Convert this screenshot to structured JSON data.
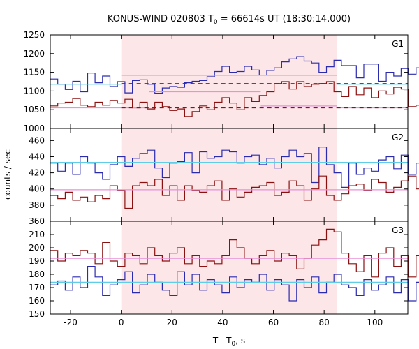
{
  "title": {
    "prefix": "KONUS-WIND 020803 T",
    "sub": "0",
    "suffix": " = 66614s UT (18:30:14.000)"
  },
  "xlabel": {
    "prefix": "T - T",
    "sub": "0",
    "suffix": ", s"
  },
  "ylabel": "counts / sec",
  "colors": {
    "blue": "#2b2bb0",
    "red": "#8b1010",
    "cyan": "#5ecde8",
    "pink": "#e890d8",
    "shade": "#fde6e8"
  },
  "chart_data": [
    {
      "type": "line",
      "panel": "G1",
      "shaded_interval": [
        0,
        85
      ],
      "xlim": [
        -28,
        113
      ],
      "ylim": [
        1000,
        1250
      ],
      "yticks": [
        1000,
        1050,
        1100,
        1150,
        1200,
        1250
      ],
      "xticks": [
        -20,
        0,
        20,
        40,
        60,
        80,
        100
      ],
      "x_start": -28,
      "bin_width": 2.944,
      "series": [
        {
          "color": "blue",
          "style": "step",
          "values": [
            1132,
            1118,
            1104,
            1126,
            1098,
            1148,
            1122,
            1140,
            1112,
            1125,
            1095,
            1128,
            1130,
            1118,
            1094,
            1108,
            1112,
            1110,
            1122,
            1126,
            1128,
            1138,
            1152,
            1166,
            1150,
            1152,
            1166,
            1156,
            1142,
            1155,
            1162,
            1178,
            1186,
            1192,
            1180,
            1175,
            1150,
            1165,
            1182,
            1168,
            1168,
            1135,
            1172,
            1172,
            1126,
            1150,
            1140,
            1160,
            1145,
            1162,
            1155,
            1168,
            1142,
            1122,
            1142,
            1110,
            1138,
            1120,
            1112,
            1108,
            1098,
            1118,
            1108,
            1110,
            1108,
            1080,
            1125,
            1110,
            1124,
            1118,
            1112,
            1092,
            1155,
            1142,
            1144,
            1145,
            1152,
            1160
          ]
        },
        {
          "color": "red",
          "style": "step",
          "values": [
            1060,
            1068,
            1070,
            1080,
            1062,
            1058,
            1070,
            1062,
            1075,
            1068,
            1078,
            1055,
            1070,
            1052,
            1070,
            1058,
            1048,
            1052,
            1032,
            1045,
            1060,
            1050,
            1070,
            1082,
            1068,
            1050,
            1082,
            1072,
            1088,
            1098,
            1120,
            1125,
            1105,
            1125,
            1112,
            1118,
            1120,
            1125,
            1098,
            1085,
            1112,
            1090,
            1108,
            1082,
            1100,
            1092,
            1110,
            1105,
            1058,
            1062,
            1070,
            1085,
            1075,
            1052,
            1062,
            1068,
            1050,
            1062,
            1072,
            1065,
            1070,
            1062,
            1068,
            1055,
            1060,
            1065,
            1045,
            1060,
            1048,
            1058,
            1055,
            1062,
            1055,
            1045,
            1050,
            1052,
            1050,
            1065
          ]
        },
        {
          "color": "cyan",
          "style": "segments",
          "segments": [
            [
              -28,
              0,
              1118
            ],
            [
              0,
              85,
              1142
            ],
            [
              85,
              113,
              1118
            ]
          ]
        },
        {
          "color": "pink",
          "style": "segments",
          "segments": [
            [
              -28,
              0,
              1055
            ],
            [
              0,
              11,
              1055
            ],
            [
              11,
              55,
              1098
            ],
            [
              55,
              85,
              1060
            ],
            [
              85,
              113,
              1055
            ]
          ]
        },
        {
          "color": "blue",
          "style": "dashed",
          "segments": [
            [
              0,
              113,
              1120
            ]
          ]
        },
        {
          "color": "red",
          "style": "dashed",
          "segments": [
            [
              0,
              113,
              1055
            ]
          ]
        }
      ]
    },
    {
      "type": "line",
      "panel": "G2",
      "shaded_interval": [
        0,
        85
      ],
      "xlim": [
        -28,
        113
      ],
      "ylim": [
        360,
        475
      ],
      "yticks": [
        360,
        380,
        400,
        420,
        440,
        460
      ],
      "xticks": [
        -20,
        0,
        20,
        40,
        60,
        80,
        100
      ],
      "x_start": -28,
      "bin_width": 2.944,
      "series": [
        {
          "color": "blue",
          "style": "step",
          "values": [
            432,
            422,
            432,
            418,
            440,
            432,
            420,
            412,
            430,
            440,
            428,
            438,
            444,
            448,
            426,
            414,
            432,
            434,
            445,
            420,
            446,
            438,
            440,
            448,
            446,
            432,
            440,
            442,
            430,
            438,
            426,
            440,
            448,
            440,
            444,
            408,
            452,
            430,
            420,
            402,
            432,
            418,
            426,
            422,
            436,
            440,
            425,
            442,
            418,
            432,
            418,
            426,
            436,
            432,
            412,
            430,
            428,
            406,
            422,
            420,
            430,
            410,
            444,
            426,
            430,
            438,
            408,
            428,
            450,
            424,
            432,
            412,
            442,
            432,
            432,
            440,
            434,
            444
          ]
        },
        {
          "color": "red",
          "style": "step",
          "values": [
            392,
            388,
            396,
            386,
            390,
            384,
            392,
            388,
            404,
            398,
            376,
            404,
            408,
            404,
            412,
            392,
            404,
            386,
            404,
            398,
            396,
            404,
            410,
            386,
            400,
            390,
            396,
            402,
            404,
            408,
            392,
            396,
            410,
            404,
            386,
            400,
            416,
            392,
            386,
            394,
            404,
            406,
            398,
            412,
            408,
            396,
            402,
            410,
            416,
            400,
            404,
            388,
            406,
            410,
            394,
            398,
            408,
            388,
            412,
            400,
            384,
            396,
            404,
            396,
            408,
            390,
            376,
            392,
            404,
            398,
            394,
            398,
            384,
            404,
            402,
            386,
            398,
            404
          ]
        },
        {
          "color": "cyan",
          "style": "segments",
          "segments": [
            [
              -28,
              113,
              433
            ]
          ]
        },
        {
          "color": "pink",
          "style": "segments",
          "segments": [
            [
              -28,
              113,
              399
            ]
          ]
        }
      ]
    },
    {
      "type": "line",
      "panel": "G3",
      "shaded_interval": [
        0,
        85
      ],
      "xlim": [
        -28,
        113
      ],
      "ylim": [
        150,
        220
      ],
      "yticks": [
        150,
        160,
        170,
        180,
        190,
        200,
        210
      ],
      "xticks": [
        -20,
        0,
        20,
        40,
        60,
        80,
        100
      ],
      "x_start": -28,
      "bin_width": 2.944,
      "series": [
        {
          "color": "blue",
          "style": "step",
          "values": [
            172,
            175,
            168,
            178,
            170,
            186,
            178,
            164,
            172,
            176,
            182,
            166,
            172,
            180,
            174,
            168,
            164,
            182,
            172,
            180,
            168,
            176,
            172,
            166,
            178,
            170,
            176,
            174,
            180,
            168,
            176,
            172,
            160,
            176,
            170,
            178,
            166,
            174,
            180,
            172,
            170,
            164,
            176,
            168,
            172,
            178,
            166,
            176,
            160,
            174,
            180,
            170,
            166,
            176,
            172,
            164,
            176,
            170,
            180,
            174,
            166,
            172,
            176,
            170,
            178,
            168,
            174,
            172,
            162,
            178,
            176,
            170,
            174,
            166,
            178,
            172,
            176,
            182
          ]
        },
        {
          "color": "red",
          "style": "step",
          "values": [
            198,
            190,
            196,
            194,
            198,
            196,
            188,
            204,
            190,
            186,
            196,
            194,
            188,
            200,
            194,
            190,
            196,
            200,
            188,
            194,
            186,
            190,
            188,
            194,
            206,
            200,
            192,
            188,
            194,
            198,
            190,
            196,
            194,
            184,
            192,
            202,
            206,
            214,
            212,
            196,
            188,
            182,
            194,
            178,
            196,
            200,
            186,
            194,
            178,
            194,
            186,
            196,
            188,
            206,
            192,
            188,
            198,
            182,
            200,
            196,
            188,
            192,
            196,
            184,
            194,
            198,
            200,
            180,
            188,
            200,
            194,
            182,
            196,
            198,
            188,
            194,
            182,
            184
          ]
        },
        {
          "color": "pink",
          "style": "segments",
          "segments": [
            [
              -28,
              113,
              192
            ]
          ]
        },
        {
          "color": "cyan",
          "style": "segments",
          "segments": [
            [
              -28,
              113,
              174
            ]
          ]
        }
      ]
    }
  ]
}
